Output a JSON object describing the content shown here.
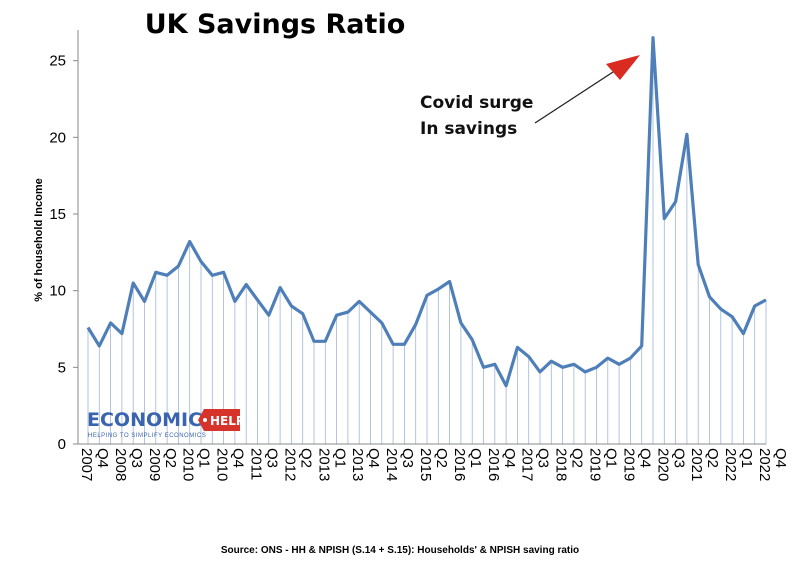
{
  "chart_data": {
    "type": "line",
    "title": "UK Savings Ratio",
    "ylabel": "% of household Income",
    "ylim": [
      0,
      27
    ],
    "yticks": [
      0,
      5,
      10,
      15,
      20,
      25
    ],
    "x_tick_labels": [
      "2007 Q4",
      "2008 Q3",
      "2009 Q2",
      "2010 Q1",
      "2010 Q4",
      "2011 Q3",
      "2012 Q2",
      "2013 Q1",
      "2013 Q4",
      "2014 Q3",
      "2015 Q2",
      "2016 Q1",
      "2016 Q4",
      "2017 Q3",
      "2018 Q2",
      "2019 Q1",
      "2019 Q4",
      "2020 Q3",
      "2021 Q2",
      "2022 Q1",
      "2022 Q4"
    ],
    "x": [
      "2007 Q4",
      "2008 Q1",
      "2008 Q2",
      "2008 Q3",
      "2008 Q4",
      "2009 Q1",
      "2009 Q2",
      "2009 Q3",
      "2009 Q4",
      "2010 Q1",
      "2010 Q2",
      "2010 Q3",
      "2010 Q4",
      "2011 Q1",
      "2011 Q2",
      "2011 Q3",
      "2011 Q4",
      "2012 Q1",
      "2012 Q2",
      "2012 Q3",
      "2012 Q4",
      "2013 Q1",
      "2013 Q2",
      "2013 Q3",
      "2013 Q4",
      "2014 Q1",
      "2014 Q2",
      "2014 Q3",
      "2014 Q4",
      "2015 Q1",
      "2015 Q2",
      "2015 Q3",
      "2015 Q4",
      "2016 Q1",
      "2016 Q2",
      "2016 Q3",
      "2016 Q4",
      "2017 Q1",
      "2017 Q2",
      "2017 Q3",
      "2017 Q4",
      "2018 Q1",
      "2018 Q2",
      "2018 Q3",
      "2018 Q4",
      "2019 Q1",
      "2019 Q2",
      "2019 Q3",
      "2019 Q4",
      "2020 Q1",
      "2020 Q2",
      "2020 Q3",
      "2020 Q4",
      "2021 Q1",
      "2021 Q2",
      "2021 Q3",
      "2021 Q4",
      "2022 Q1",
      "2022 Q2",
      "2022 Q3",
      "2022 Q4"
    ],
    "series": [
      {
        "values": [
          7.6,
          6.4,
          7.9,
          7.2,
          10.5,
          9.3,
          11.2,
          11.0,
          11.6,
          13.2,
          11.9,
          11.0,
          11.2,
          9.3,
          10.4,
          9.4,
          8.4,
          10.2,
          9.0,
          8.5,
          6.7,
          6.7,
          8.4,
          8.6,
          9.3,
          8.6,
          7.9,
          6.5,
          6.5,
          7.8,
          9.7,
          10.1,
          10.6,
          7.9,
          6.8,
          5.0,
          5.2,
          3.8,
          6.3,
          5.7,
          4.7,
          5.4,
          5.0,
          5.2,
          4.7,
          5.0,
          5.6,
          5.2,
          5.6,
          6.4,
          26.5,
          14.7,
          15.8,
          20.2,
          11.7,
          9.6,
          8.8,
          8.3,
          7.2,
          9.0,
          9.4
        ],
        "color": "#4f7fb9"
      }
    ],
    "annotation": {
      "lines": [
        "Covid surge",
        "In savings"
      ],
      "arrow_color": "#d92b20"
    },
    "grid": false
  },
  "logo": {
    "text": "ECONOMICS",
    "badge": "HELP",
    "tagline": "HELPING TO SIMPLIFY ECONOMICS"
  },
  "source": "Source: ONS - HH & NPISH (S.14 + S.15): Households' & NPISH saving ratio"
}
